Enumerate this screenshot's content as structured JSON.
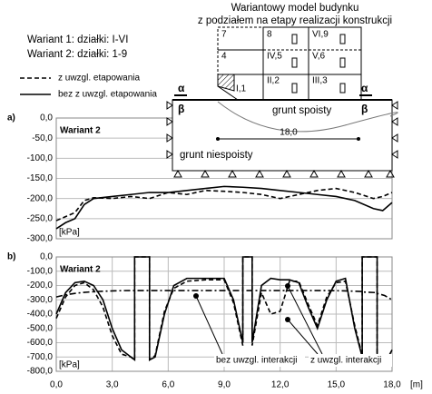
{
  "chart_data": [
    {
      "type": "line",
      "panel": "a)",
      "inner_title": "Wariant 2",
      "ylabel": "[kPa]",
      "xlim": [
        0,
        18
      ],
      "ylim": [
        -300,
        0
      ],
      "grid": true,
      "yticks": [
        {
          "value": 0,
          "label": "0,0"
        },
        {
          "value": -50,
          "label": "-50,0"
        },
        {
          "value": -100,
          "label": "-100,0"
        },
        {
          "value": -150,
          "label": "-150,0"
        },
        {
          "value": -200,
          "label": "-200,0"
        },
        {
          "value": -250,
          "label": "-250,0"
        },
        {
          "value": -300,
          "label": "-300,0"
        }
      ],
      "x": [
        0,
        0.5,
        1,
        1.5,
        2,
        3,
        4,
        5,
        6,
        7,
        8,
        9,
        10,
        11,
        12,
        13,
        14,
        15,
        16,
        17,
        17.5,
        18
      ],
      "series": [
        {
          "name": "z uwzgl. etapowania",
          "color": "#000000",
          "style": "dashed",
          "values": [
            -255,
            -245,
            -235,
            -205,
            -198,
            -200,
            -195,
            -200,
            -185,
            -190,
            -180,
            -182,
            -185,
            -190,
            -200,
            -190,
            -180,
            -175,
            -185,
            -200,
            -195,
            -185
          ]
        },
        {
          "name": "bez z uwzgl. etapowania",
          "color": "#000000",
          "style": "solid",
          "values": [
            -275,
            -260,
            -250,
            -215,
            -200,
            -195,
            -190,
            -185,
            -185,
            -180,
            -175,
            -170,
            -172,
            -175,
            -180,
            -185,
            -190,
            -195,
            -205,
            -225,
            -230,
            -210
          ]
        }
      ]
    },
    {
      "type": "line",
      "panel": "b)",
      "inner_title": "Wariant 2",
      "ylabel": "[kPa]",
      "xlabel": "[m]",
      "xlim": [
        0,
        18
      ],
      "ylim": [
        -800,
        0
      ],
      "grid": true,
      "xticks": [
        {
          "value": 0,
          "label": "0,0"
        },
        {
          "value": 3,
          "label": "3,0"
        },
        {
          "value": 6,
          "label": "6,0"
        },
        {
          "value": 9,
          "label": "9,0"
        },
        {
          "value": 12,
          "label": "12,0"
        },
        {
          "value": 15,
          "label": "15,0"
        },
        {
          "value": 18,
          "label": "18,0"
        }
      ],
      "yticks": [
        {
          "value": 0,
          "label": "0,0"
        },
        {
          "value": -100,
          "label": "-100,0"
        },
        {
          "value": -200,
          "label": "-200,0"
        },
        {
          "value": -300,
          "label": "-300,0"
        },
        {
          "value": -400,
          "label": "-400,0"
        },
        {
          "value": -500,
          "label": "-500,0"
        },
        {
          "value": -600,
          "label": "-600,0"
        },
        {
          "value": -700,
          "label": "-700,0"
        },
        {
          "value": -800,
          "label": "-800,0"
        }
      ],
      "x": [
        0,
        0.5,
        1,
        1.5,
        2,
        2.5,
        3,
        3.5,
        4,
        4.2,
        4.2,
        5.0,
        5.0,
        5.3,
        5.8,
        6.3,
        7,
        8,
        9,
        9.5,
        10,
        10,
        10.5,
        10.5,
        11,
        11.5,
        12,
        12.5,
        13,
        13.5,
        14,
        14.5,
        15,
        15.5,
        16,
        16.4,
        16.4,
        17.2,
        17.2,
        17.6,
        18
      ],
      "series": [
        {
          "color": "#000000",
          "style": "dashed",
          "values": [
            -430,
            -280,
            -200,
            -180,
            -230,
            -350,
            -550,
            -680,
            -700,
            -720,
            0,
            0,
            -720,
            -690,
            -380,
            -220,
            -170,
            -160,
            -160,
            -320,
            -620,
            0,
            0,
            -620,
            -250,
            -400,
            -380,
            -170,
            -170,
            -330,
            -480,
            -280,
            -180,
            -170,
            -480,
            -690,
            0,
            0,
            -690,
            -740,
            -700
          ]
        },
        {
          "color": "#000000",
          "style": "solid",
          "values": [
            -400,
            -250,
            -180,
            -170,
            -200,
            -300,
            -500,
            -650,
            -700,
            -720,
            0,
            0,
            -720,
            -700,
            -400,
            -200,
            -150,
            -150,
            -150,
            -300,
            -600,
            0,
            0,
            -600,
            -200,
            -150,
            -160,
            -160,
            -180,
            -350,
            -500,
            -300,
            -170,
            -150,
            -500,
            -700,
            0,
            0,
            -700,
            -750,
            -650
          ]
        },
        {
          "color": "#000000",
          "style": "dashdot",
          "values": [
            -280,
            -265,
            -255,
            -248,
            -243,
            -240,
            -238,
            -236,
            -235,
            -235,
            -235,
            -235,
            -235,
            -235,
            -235,
            -235,
            -235,
            -235,
            -235,
            -235,
            -235,
            -235,
            -235,
            -235,
            -235,
            -235,
            -235,
            -235,
            -235,
            -235,
            -235,
            -235,
            -236,
            -238,
            -240,
            -242,
            -245,
            -250,
            -255,
            -270,
            -300
          ]
        }
      ],
      "annotations": [
        "bez uwzgl. interakcji",
        "z uwzgl. interakcji"
      ]
    }
  ],
  "diagram": {
    "title": [
      "Wariantowy model budynku",
      "z podziałem na etapy realizacji konstrukcji"
    ],
    "variants": [
      "Wariant 1: działki: I-VI",
      "Wariant 2: działki: 1-9"
    ],
    "cells": [
      "7",
      "8",
      "VI,9",
      "4",
      "IV,5",
      "V,6",
      "I,1",
      "II,2",
      "III,3"
    ],
    "alpha": "α",
    "beta": "β",
    "soil_top": "grunt spoisty",
    "soil_bottom": "grunt niespoisty",
    "dimension": "18,0"
  }
}
